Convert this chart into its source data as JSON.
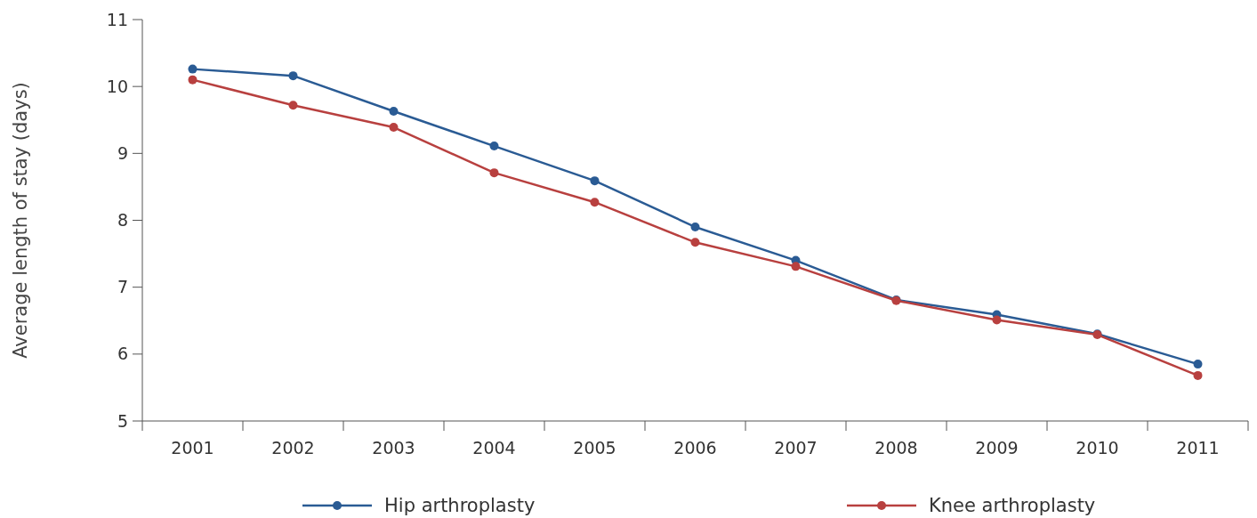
{
  "chart_data": {
    "type": "line",
    "ylabel": "Average length of stay (days)",
    "categories": [
      "2001",
      "2002",
      "2003",
      "2004",
      "2005",
      "2006",
      "2007",
      "2008",
      "2009",
      "2010",
      "2011"
    ],
    "series": [
      {
        "name": "Hip arthroplasty",
        "color": "#2a5b94",
        "values": [
          10.26,
          10.16,
          9.63,
          9.11,
          8.59,
          7.9,
          7.4,
          6.81,
          6.59,
          6.3,
          5.85
        ]
      },
      {
        "name": "Knee arthroplasty",
        "color": "#b8403f",
        "values": [
          10.1,
          9.72,
          9.39,
          8.71,
          8.27,
          7.67,
          7.31,
          6.8,
          6.51,
          6.29,
          5.68
        ]
      }
    ],
    "ylim": [
      5,
      11
    ],
    "yticks": [
      5,
      6,
      7,
      8,
      9,
      10,
      11
    ],
    "grid": false,
    "legend": "bottom",
    "marker": "circle",
    "line_style": "solid"
  }
}
